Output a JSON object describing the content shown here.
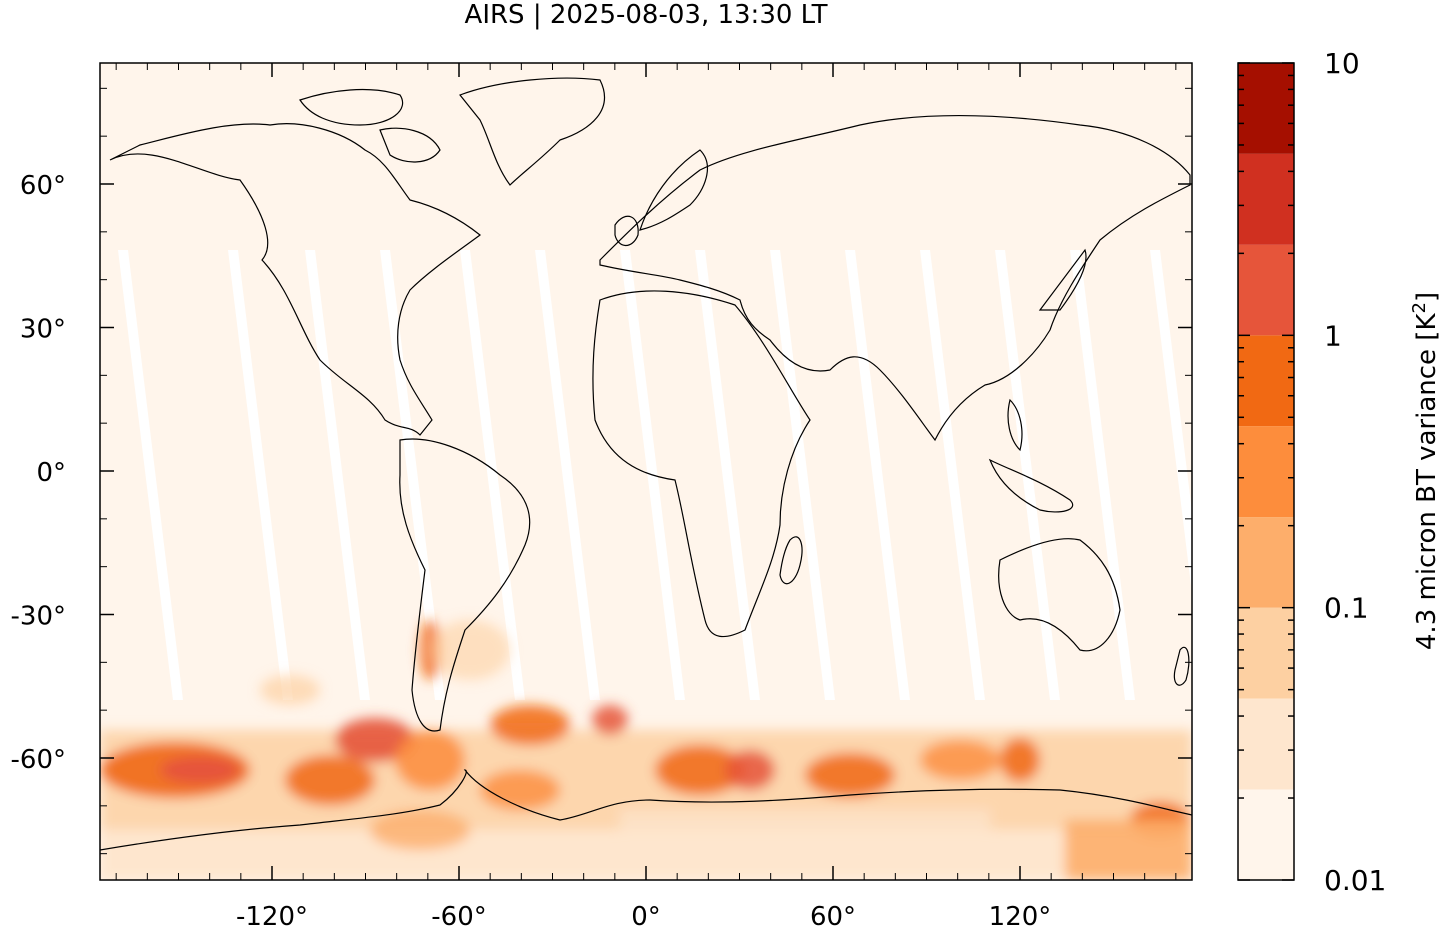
{
  "title": "AIRS | 2025-08-03, 13:30 LT",
  "map": {
    "projection": "plate-carree",
    "lon_range": [
      -180,
      180
    ],
    "lat_range": [
      -90,
      90
    ],
    "background_color": "#fff5eb",
    "swath_gap_color": "#ffffff",
    "coastline_color": "#000000"
  },
  "x_ticks": [
    {
      "value": -120,
      "label": "-120°"
    },
    {
      "value": -60,
      "label": "-60°"
    },
    {
      "value": 0,
      "label": "0°"
    },
    {
      "value": 60,
      "label": "60°"
    },
    {
      "value": 120,
      "label": "120°"
    }
  ],
  "y_ticks": [
    {
      "value": 60,
      "label": "60°"
    },
    {
      "value": 30,
      "label": "30°"
    },
    {
      "value": 0,
      "label": "0°"
    },
    {
      "value": -30,
      "label": "-30°"
    },
    {
      "value": -60,
      "label": "-60°"
    }
  ],
  "colorbar": {
    "label_prefix": "4.3 micron BT variance [K",
    "label_sup": "2",
    "label_suffix": "]",
    "scale": "log",
    "range": [
      0.01,
      10
    ],
    "ticks": [
      {
        "value": 10,
        "label": "10"
      },
      {
        "value": 1,
        "label": "1"
      },
      {
        "value": 0.1,
        "label": "0.1"
      },
      {
        "value": 0.01,
        "label": "0.01"
      }
    ],
    "colors": [
      "#fff5eb",
      "#fee6ce",
      "#fdd0a2",
      "#fdae6b",
      "#fd8d3c",
      "#f16913",
      "#e6553a",
      "#d03020",
      "#a50f00"
    ],
    "levels": [
      0.01,
      0.0215,
      0.0464,
      0.1,
      0.215,
      0.464,
      1,
      2.15,
      4.64,
      10
    ]
  }
}
